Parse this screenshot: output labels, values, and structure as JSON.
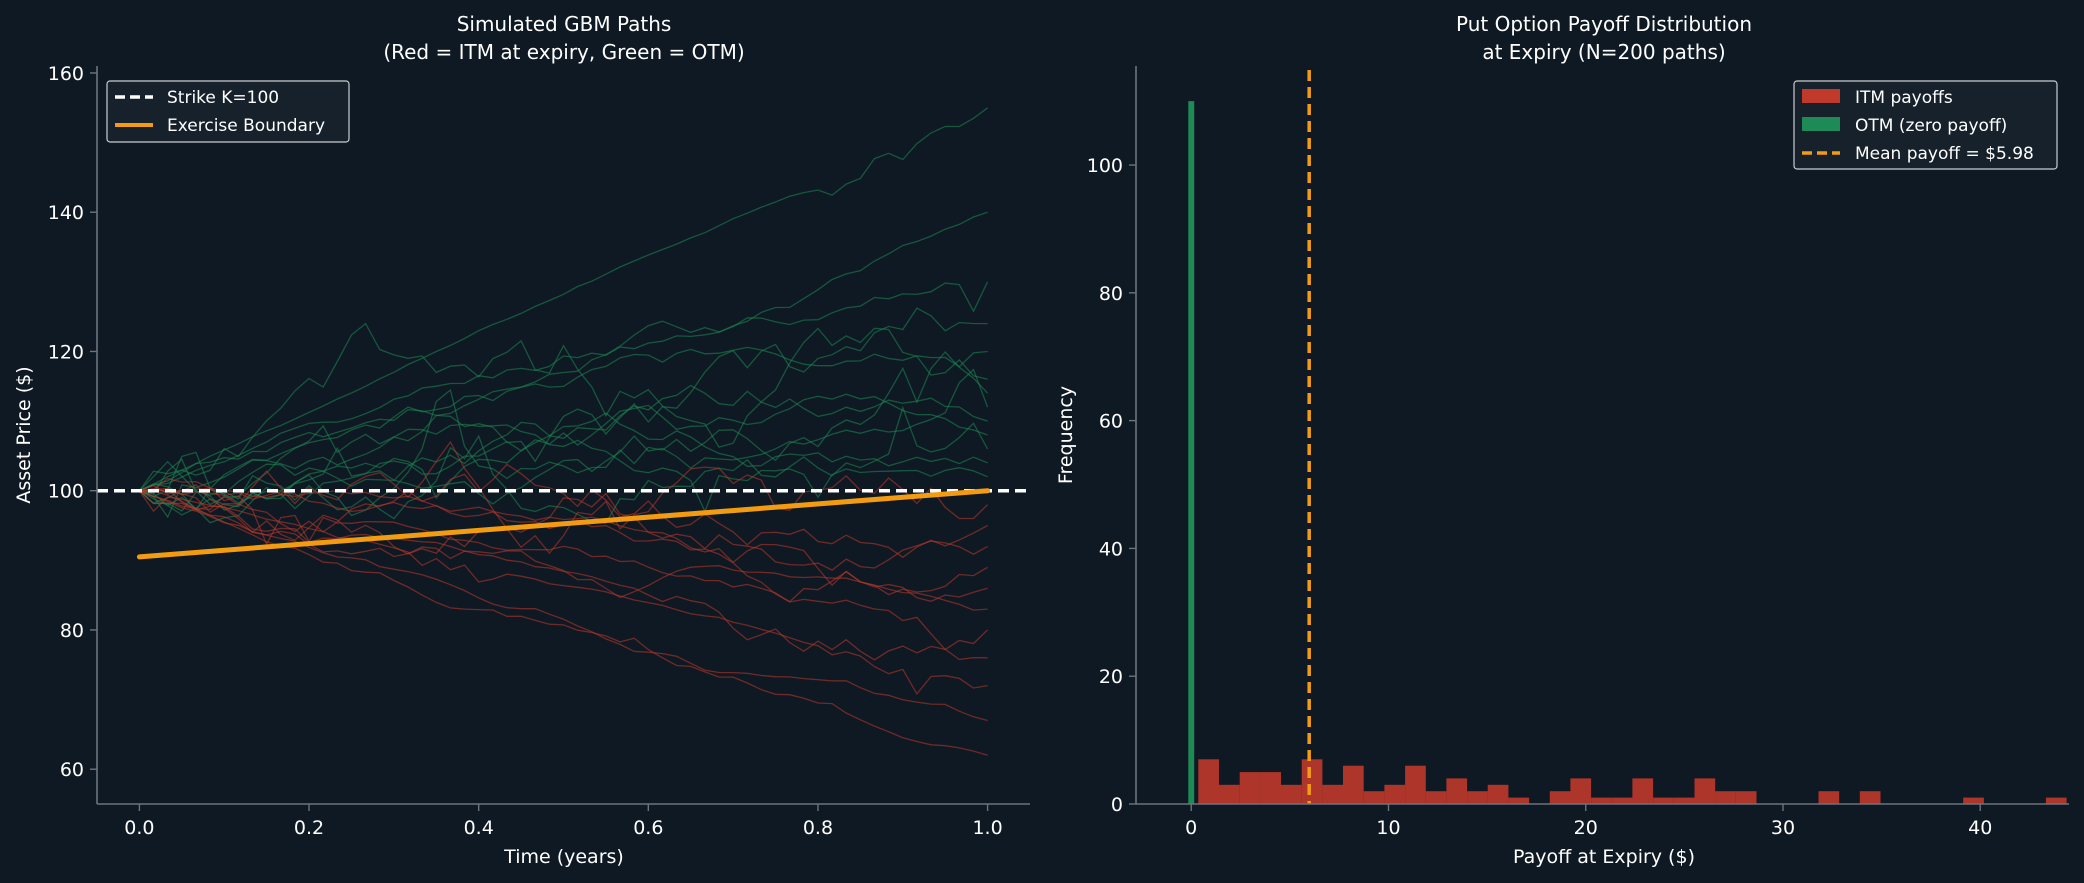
{
  "colors": {
    "background": "#0f1923",
    "axis": "#6b747c",
    "text": "#ffffff",
    "itm": "#c0392b",
    "otm": "#1e8a55",
    "strike": "#ffffff",
    "boundary": "#f39c12",
    "legend_bg": "#17212b"
  },
  "chart_data": [
    {
      "type": "line",
      "title_line1": "Simulated GBM Paths",
      "title_line2": "(Red = ITM at expiry, Green = OTM)",
      "xlabel": "Time (years)",
      "ylabel": "Asset Price ($)",
      "xlim": [
        -0.05,
        1.05
      ],
      "ylim": [
        55,
        161
      ],
      "xticks": [
        0.0,
        0.2,
        0.4,
        0.6,
        0.8,
        1.0
      ],
      "xtick_labels": [
        "0.0",
        "0.2",
        "0.4",
        "0.6",
        "0.8",
        "1.0"
      ],
      "yticks": [
        60,
        80,
        100,
        120,
        140,
        160
      ],
      "ytick_labels": [
        "60",
        "80",
        "100",
        "120",
        "140",
        "160"
      ],
      "grid": false,
      "legend_placement": "top-left",
      "strike": {
        "name": "Strike K=100",
        "value": 100
      },
      "boundary": {
        "name": "Exercise Boundary",
        "x": [
          0.0,
          1.0
        ],
        "y": [
          90.5,
          100.0
        ]
      },
      "paths": [
        {
          "group": "otm",
          "final": 155.0,
          "max": 156.0,
          "min": 97.0
        },
        {
          "group": "otm",
          "final": 140.0,
          "max": 142.0,
          "min": 95.0
        },
        {
          "group": "otm",
          "final": 130.0,
          "max": 136.0,
          "min": 94.0
        },
        {
          "group": "otm",
          "final": 124.0,
          "max": 130.0,
          "min": 93.0
        },
        {
          "group": "otm",
          "final": 120.0,
          "max": 128.0,
          "min": 94.0
        },
        {
          "group": "otm",
          "final": 116.0,
          "max": 138.0,
          "min": 95.0
        },
        {
          "group": "otm",
          "final": 114.0,
          "max": 124.0,
          "min": 92.0
        },
        {
          "group": "otm",
          "final": 112.0,
          "max": 121.0,
          "min": 93.0
        },
        {
          "group": "otm",
          "final": 110.0,
          "max": 119.0,
          "min": 94.0
        },
        {
          "group": "otm",
          "final": 108.0,
          "max": 117.0,
          "min": 95.0
        },
        {
          "group": "otm",
          "final": 106.0,
          "max": 115.0,
          "min": 92.0
        },
        {
          "group": "otm",
          "final": 104.0,
          "max": 113.0,
          "min": 93.0
        },
        {
          "group": "otm",
          "final": 102.0,
          "max": 111.0,
          "min": 94.0
        },
        {
          "group": "itm",
          "final": 98.0,
          "max": 108.0,
          "min": 90.0
        },
        {
          "group": "itm",
          "final": 95.0,
          "max": 106.0,
          "min": 88.0
        },
        {
          "group": "itm",
          "final": 92.0,
          "max": 104.0,
          "min": 85.0
        },
        {
          "group": "itm",
          "final": 89.0,
          "max": 103.0,
          "min": 82.0
        },
        {
          "group": "itm",
          "final": 86.0,
          "max": 103.0,
          "min": 80.0
        },
        {
          "group": "itm",
          "final": 83.0,
          "max": 102.0,
          "min": 77.0
        },
        {
          "group": "itm",
          "final": 80.0,
          "max": 102.0,
          "min": 74.0
        },
        {
          "group": "itm",
          "final": 76.0,
          "max": 101.0,
          "min": 71.0
        },
        {
          "group": "itm",
          "final": 72.0,
          "max": 101.0,
          "min": 67.0
        },
        {
          "group": "itm",
          "final": 67.0,
          "max": 101.0,
          "min": 63.0
        },
        {
          "group": "itm",
          "final": 62.0,
          "max": 101.0,
          "min": 59.0
        }
      ]
    },
    {
      "type": "bar",
      "title_line1": "Put Option Payoff Distribution",
      "title_line2": "at Expiry (N=200 paths)",
      "xlabel": "Payoff at Expiry ($)",
      "ylabel": "Frequency",
      "xlim": [
        -2.8,
        44.5
      ],
      "ylim": [
        0,
        115.5
      ],
      "xticks": [
        0,
        10,
        20,
        30,
        40
      ],
      "xtick_labels": [
        "0",
        "10",
        "20",
        "30",
        "40"
      ],
      "yticks": [
        0,
        20,
        40,
        60,
        80,
        100
      ],
      "ytick_labels": [
        "0",
        "20",
        "40",
        "60",
        "80",
        "100"
      ],
      "grid": false,
      "legend_placement": "top-right",
      "otm": {
        "name": "OTM (zero payoff)",
        "x_start": -0.15,
        "x_end": 0.15,
        "count": 110
      },
      "itm": {
        "name": "ITM payoffs",
        "bin_start": 0.36,
        "bin_width": 1.048,
        "counts": [
          7,
          3,
          5,
          5,
          3,
          7,
          3,
          6,
          2,
          3,
          6,
          2,
          4,
          2,
          3,
          1,
          0,
          2,
          4,
          1,
          1,
          4,
          1,
          1,
          4,
          2,
          2,
          0,
          0,
          0,
          2,
          0,
          2,
          0,
          0,
          0,
          0,
          1,
          0,
          0,
          0,
          1
        ]
      },
      "mean": {
        "name": "Mean payoff = $5.98",
        "value": 5.98
      }
    }
  ]
}
